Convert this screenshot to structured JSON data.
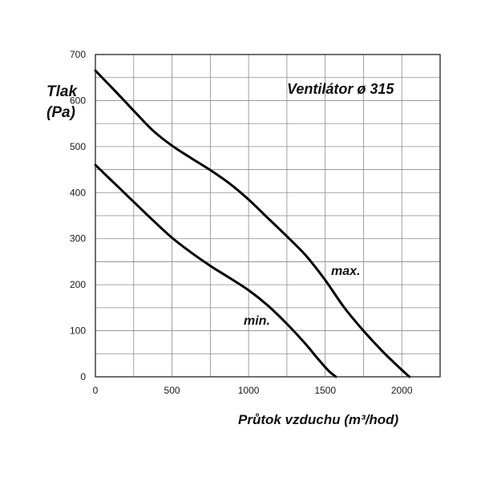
{
  "chart_data": {
    "type": "line",
    "title": "Ventilátor ø 315",
    "ylabel_line1": "Tlak",
    "ylabel_line2": "(Pa)",
    "xlabel": "Průtok vzduchu (m³/hod)",
    "xlim": [
      0,
      2250
    ],
    "ylim": [
      0,
      700
    ],
    "x_ticks": [
      0,
      500,
      1000,
      1500,
      2000
    ],
    "y_ticks": [
      0,
      100,
      200,
      300,
      400,
      500,
      600,
      700
    ],
    "x_grid_step": 250,
    "y_grid_step": 50,
    "grid": true,
    "series": [
      {
        "name": "max.",
        "x": [
          0,
          125,
          250,
          375,
          500,
          625,
          750,
          875,
          1000,
          1125,
          1250,
          1375,
          1500,
          1625,
          1750,
          1875,
          2000,
          2050
        ],
        "y": [
          665,
          622,
          578,
          535,
          502,
          475,
          449,
          420,
          385,
          345,
          305,
          263,
          210,
          150,
          100,
          55,
          15,
          0
        ]
      },
      {
        "name": "min.",
        "x": [
          0,
          125,
          250,
          375,
          500,
          625,
          750,
          875,
          1000,
          1125,
          1250,
          1375,
          1450,
          1525,
          1570
        ],
        "y": [
          460,
          420,
          380,
          340,
          302,
          270,
          241,
          215,
          188,
          155,
          115,
          70,
          40,
          12,
          0
        ]
      }
    ]
  }
}
